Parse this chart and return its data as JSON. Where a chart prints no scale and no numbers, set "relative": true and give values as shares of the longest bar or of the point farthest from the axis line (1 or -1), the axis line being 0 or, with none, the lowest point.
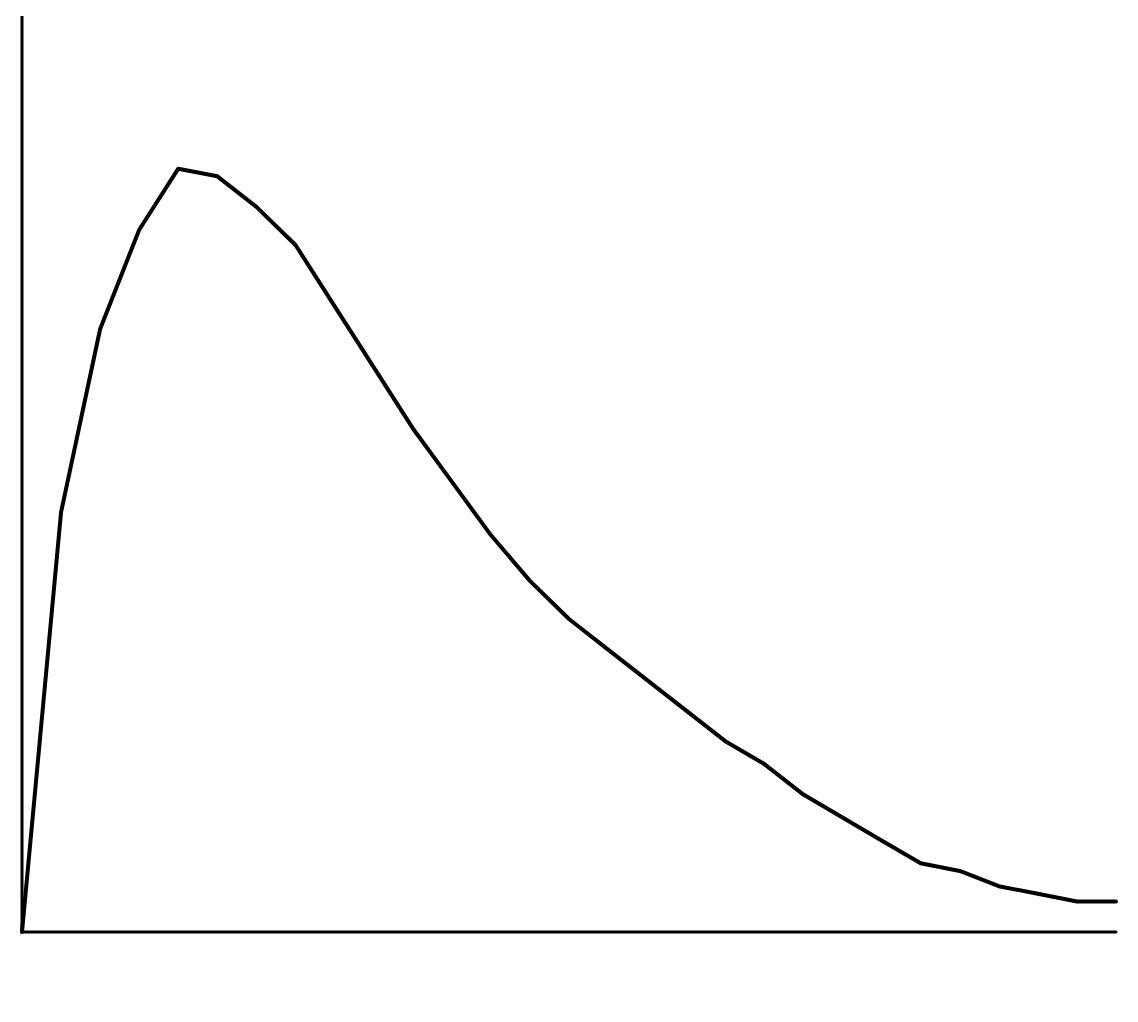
{
  "chart_data": {
    "type": "line",
    "relative": true,
    "categories": [
      null,
      null,
      null,
      null,
      null,
      null,
      null,
      null,
      null,
      null,
      null,
      null,
      null,
      null,
      null,
      null,
      null,
      null,
      null,
      null,
      null,
      null,
      null,
      null,
      null,
      null,
      null,
      null,
      null
    ],
    "series": [
      {
        "color": "#000000",
        "values": [
          0,
          0.55,
          0.79,
          0.92,
          1,
          0.99,
          0.95,
          0.9,
          0.82,
          0.74,
          0.66,
          0.59,
          0.52,
          0.46,
          0.41,
          0.37,
          0.33,
          0.29,
          0.25,
          0.22,
          0.18,
          0.15,
          0.12,
          0.09,
          0.08,
          0.06,
          0.05,
          0.04,
          0.04
        ]
      }
    ],
    "grid": false,
    "marker": "none",
    "line_style": "solid"
  }
}
